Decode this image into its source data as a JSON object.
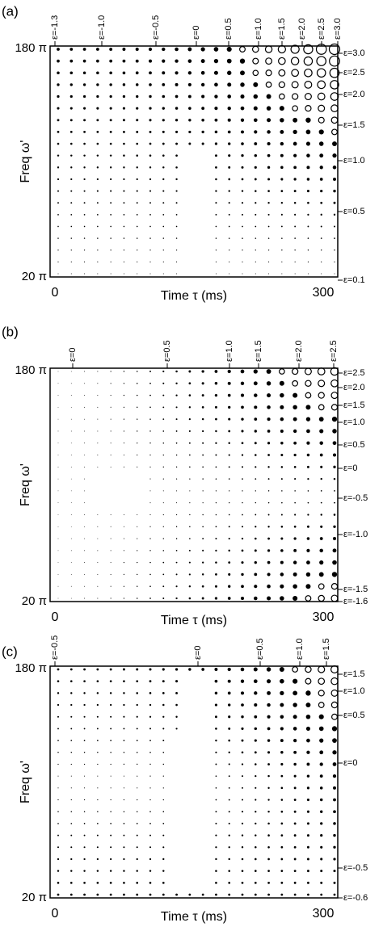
{
  "panels": [
    {
      "label": "(a)",
      "y_axis": "Freq  ω'",
      "x_axis": "Time  τ  (ms)",
      "y_top": "180 π",
      "y_bottom": "20 π",
      "x_left": "0",
      "x_right": "300",
      "top_eps": [
        "ε=-1.3",
        "ε=-1.0",
        "ε=-0.5",
        "ε=0",
        "ε=0.5",
        "ε=1.0",
        "ε=1.5",
        "ε=2.0",
        "ε=2.5",
        "ε=3.0"
      ],
      "right_eps": [
        "ε=3.0",
        "ε=2.5",
        "ε=2.0",
        "ε=1.5",
        "ε=1.0",
        "ε=0.5",
        "ε=0.1"
      ]
    },
    {
      "label": "(b)",
      "y_axis": "Freq  ω'",
      "x_axis": "Time  τ  (ms)",
      "y_top": "180 π",
      "y_bottom": "20 π",
      "x_left": "0",
      "x_right": "300",
      "top_eps": [
        "ε=0",
        "ε=0.5",
        "ε=1.0",
        "ε=1.5",
        "ε=2.0",
        "ε=2.5"
      ],
      "right_eps": [
        "ε=2.5",
        "ε=2.0",
        "ε=1.5",
        "ε=1.0",
        "ε=0.5",
        "ε=0",
        "ε=-0.5",
        "ε=-1.0",
        "ε=-1.5",
        "ε=-1.6"
      ]
    },
    {
      "label": "(c)",
      "y_axis": "Freq  ω'",
      "x_axis": "Time  τ  (ms)",
      "y_top": "180 π",
      "y_bottom": "20 π",
      "x_left": "0",
      "x_right": "300",
      "top_eps": [
        "ε=-0.5",
        "ε=0",
        "ε=0.5",
        "ε=1.0",
        "ε=1.5"
      ],
      "right_eps": [
        "ε=1.5",
        "ε=1.0",
        "ε=0.5",
        "ε=0",
        "ε=-0.5",
        "ε=-0.6"
      ]
    }
  ]
}
